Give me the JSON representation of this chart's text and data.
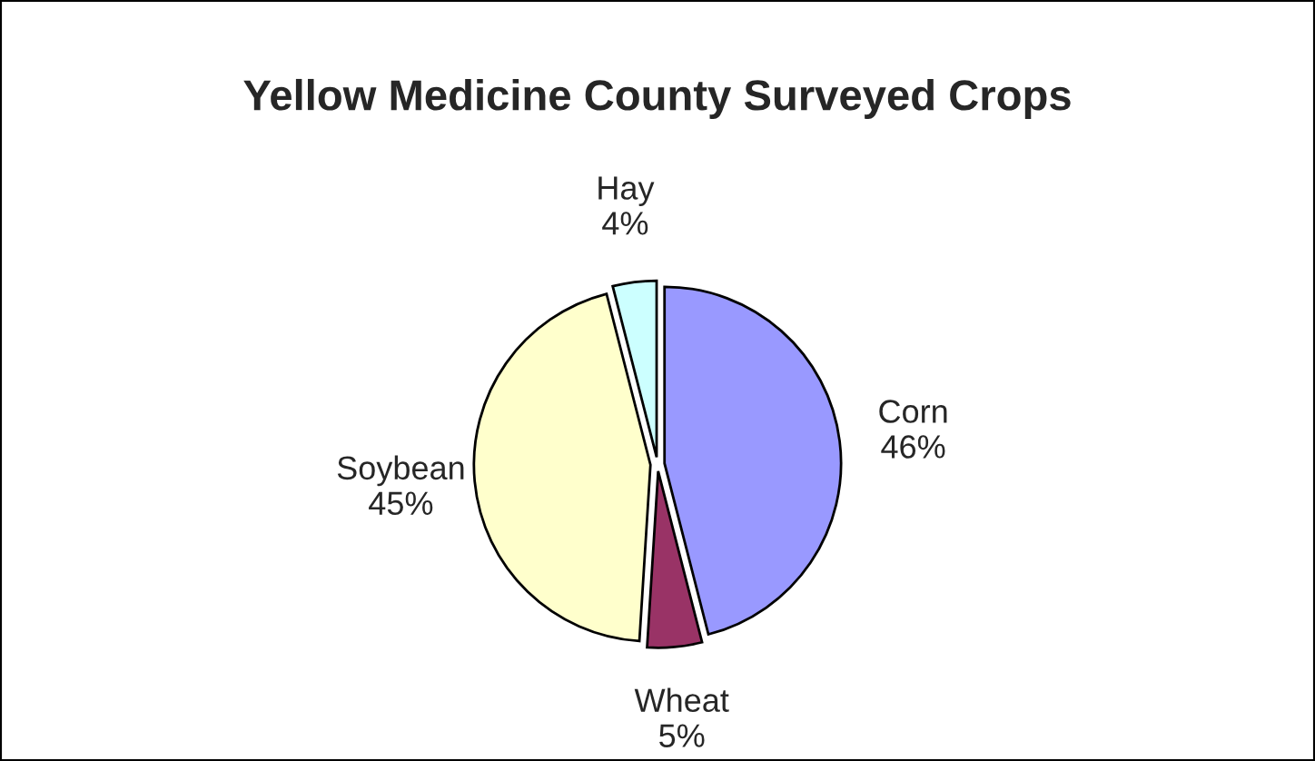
{
  "chart_data": {
    "type": "pie",
    "title": "Yellow Medicine County Surveyed Crops",
    "categories": [
      "Corn",
      "Wheat",
      "Soybean",
      "Hay"
    ],
    "values": [
      46,
      5,
      45,
      4
    ],
    "value_labels": [
      "46%",
      "5%",
      "45%",
      "4%"
    ],
    "colors": [
      "#9999ff",
      "#993366",
      "#ffffcc",
      "#ccffff"
    ],
    "legend": false
  }
}
